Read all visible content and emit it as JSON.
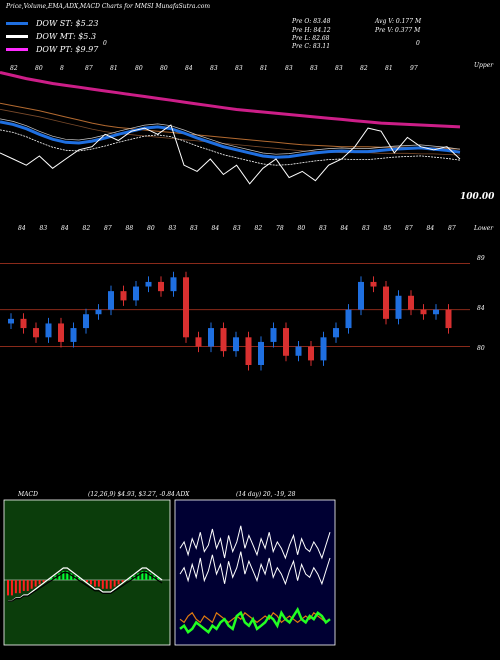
{
  "header": {
    "title": "Price,Volume,EMA,ADX,MACD Charts for MMSI MunafaSutra.com",
    "legend": [
      {
        "label": "DOW ST: $5.23",
        "color": "#1f6fe0"
      },
      {
        "label": "DOW MT: $5.3",
        "color": "#ffffff"
      },
      {
        "label": "DOW PT: $9.97",
        "color": "#ff2bff"
      }
    ],
    "ohlc": [
      "Pre O: 83.48",
      "Pre H: 84.12",
      "Pre L: 82.68",
      "Pre C: 83.11"
    ],
    "volume": [
      "Avg V: 0.177 M",
      "Pre V: 0.377 M"
    ],
    "zero_label": "0",
    "zero_label_right": "0"
  },
  "colors": {
    "ema_long": "#cc1e88",
    "ema_mid": "#b36a30",
    "ema_short": "#1f6fe0",
    "up": "#1f6fe0",
    "down": "#d93030",
    "level_line": "#8a2a1a"
  },
  "ema_panel": {
    "top_label": "Upper",
    "lower_label": "Lower",
    "value_label": "100.00",
    "top_ticks": [
      "82",
      "80",
      "8",
      "87",
      "81",
      "80",
      "80",
      "84",
      "83",
      "83",
      "81",
      "83",
      "83",
      "83",
      "82",
      "81",
      "97"
    ],
    "bottom_ticks": [
      "84",
      "83",
      "84",
      "82",
      "87",
      "88",
      "80",
      "83",
      "83",
      "84",
      "83",
      "82",
      "78",
      "80",
      "83",
      "84",
      "83",
      "85",
      "87",
      "84",
      "87"
    ],
    "series": {
      "ema_long": [
        96,
        95.5,
        95,
        94.6,
        94.2,
        93.9,
        93.6,
        93.3,
        93.0,
        92.7,
        92.4,
        92.1,
        91.8,
        91.5,
        91.2,
        90.9,
        90.6,
        90.3,
        90.0,
        89.8,
        89.6,
        89.4,
        89.2,
        89.0,
        88.8,
        88.6,
        88.4,
        88.2,
        88.0,
        87.8,
        87.7,
        87.6,
        87.5,
        87.4,
        87.3,
        87.2
      ],
      "ema_mid": [
        91,
        90.6,
        90.2,
        89.8,
        89.3,
        88.8,
        88.3,
        87.8,
        87.4,
        87.1,
        86.9,
        86.7,
        86.5,
        86.3,
        86.1,
        85.9,
        85.7,
        85.5,
        85.3,
        85.1,
        84.9,
        84.7,
        84.5,
        84.3,
        84.2,
        84.1,
        84.0,
        84.0,
        84.0,
        83.9,
        83.9,
        83.9,
        83.8,
        83.8,
        83.7,
        83.6
      ],
      "ema_short": [
        88,
        87.6,
        86.9,
        86.0,
        85.2,
        84.7,
        84.6,
        84.9,
        85.4,
        86.0,
        86.5,
        87.0,
        87.2,
        86.9,
        86.2,
        85.4,
        84.7,
        84.0,
        83.5,
        83.0,
        82.5,
        82.3,
        82.4,
        82.7,
        83.0,
        83.2,
        83.3,
        83.2,
        83.2,
        83.4,
        83.6,
        83.7,
        83.8,
        83.6,
        83.4,
        83.1
      ],
      "price": [
        83,
        82,
        81,
        82.5,
        80.5,
        82,
        83.5,
        84,
        86,
        85,
        86.5,
        87,
        86,
        87.5,
        81,
        80,
        82,
        79.5,
        81,
        78,
        80.5,
        82,
        79,
        80,
        78.5,
        81,
        82,
        84,
        87,
        86.5,
        83,
        85.5,
        84,
        83.5,
        84,
        82
      ]
    }
  },
  "candle_panel": {
    "price_labels": [
      "89",
      "84",
      "80"
    ],
    "levels": [
      89,
      84,
      80
    ]
  },
  "macd": {
    "label": "MACD",
    "params": "(12,26,9) $4.93, $3.27, -0.84",
    "hist": [
      -7,
      -7,
      -6,
      -6,
      -5,
      -5,
      -4,
      -3,
      -2,
      -1,
      0,
      1,
      2,
      3,
      4,
      4,
      3,
      2,
      1,
      0,
      -1,
      -2,
      -3,
      -3,
      -4,
      -4,
      -4,
      -3,
      -2,
      -1,
      0,
      1,
      2,
      3,
      4,
      4,
      3,
      2,
      1,
      0
    ]
  },
  "adx": {
    "label": "ADX",
    "params": "(14 day) 20, -19, 28",
    "plus_di": [
      30,
      32,
      28,
      33,
      30,
      35,
      29,
      31,
      36,
      30,
      33,
      27,
      34,
      29,
      32,
      37,
      30,
      34,
      31,
      28,
      33,
      30,
      35,
      29,
      32,
      30,
      27,
      31,
      34,
      28,
      33,
      30,
      29,
      32,
      30,
      27,
      31,
      35
    ],
    "minus_di": [
      22,
      24,
      20,
      25,
      21,
      27,
      20,
      23,
      28,
      22,
      25,
      19,
      26,
      21,
      24,
      29,
      22,
      26,
      23,
      20,
      25,
      22,
      27,
      21,
      24,
      22,
      19,
      23,
      26,
      20,
      25,
      22,
      21,
      24,
      22,
      19,
      23,
      27
    ],
    "adx_line": [
      8,
      7,
      9,
      10,
      8,
      7,
      9,
      8,
      7,
      10,
      9,
      8,
      7,
      8,
      9,
      8,
      10,
      9,
      8,
      7,
      8,
      9,
      8,
      10,
      9,
      7,
      8,
      9,
      8,
      7,
      8,
      9,
      8,
      10,
      9,
      8,
      7,
      8
    ],
    "green_line": [
      5,
      6,
      4,
      5,
      7,
      6,
      5,
      4,
      6,
      5,
      7,
      8,
      6,
      5,
      9,
      10,
      7,
      6,
      8,
      5,
      6,
      7,
      9,
      8,
      6,
      10,
      8,
      7,
      9,
      11,
      8,
      7,
      9,
      8,
      10,
      9,
      7,
      8
    ]
  }
}
